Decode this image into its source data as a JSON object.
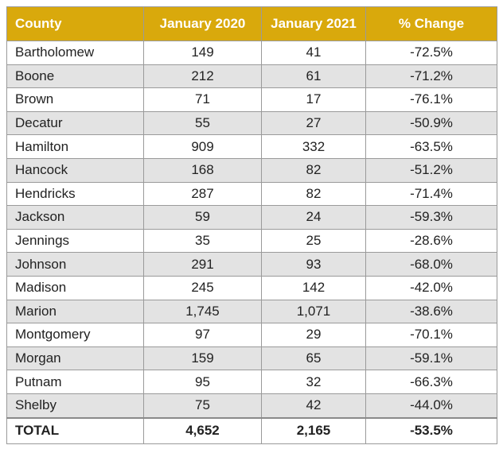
{
  "table": {
    "headers": [
      "County",
      "January 2020",
      "January 2021",
      "% Change"
    ],
    "rows": [
      [
        "Bartholomew",
        "149",
        "41",
        "-72.5%"
      ],
      [
        "Boone",
        "212",
        "61",
        "-71.2%"
      ],
      [
        "Brown",
        "71",
        "17",
        "-76.1%"
      ],
      [
        "Decatur",
        "55",
        "27",
        "-50.9%"
      ],
      [
        "Hamilton",
        "909",
        "332",
        "-63.5%"
      ],
      [
        "Hancock",
        "168",
        "82",
        "-51.2%"
      ],
      [
        "Hendricks",
        "287",
        "82",
        "-71.4%"
      ],
      [
        "Jackson",
        "59",
        "24",
        "-59.3%"
      ],
      [
        "Jennings",
        "35",
        "25",
        "-28.6%"
      ],
      [
        "Johnson",
        "291",
        "93",
        "-68.0%"
      ],
      [
        "Madison",
        "245",
        "142",
        "-42.0%"
      ],
      [
        "Marion",
        "1,745",
        "1,071",
        "-38.6%"
      ],
      [
        "Montgomery",
        "97",
        "29",
        "-70.1%"
      ],
      [
        "Morgan",
        "159",
        "65",
        "-59.1%"
      ],
      [
        "Putnam",
        "95",
        "32",
        "-66.3%"
      ],
      [
        "Shelby",
        "75",
        "42",
        "-44.0%"
      ]
    ],
    "total": [
      "TOTAL",
      "4,652",
      "2,165",
      "-53.5%"
    ]
  },
  "colors": {
    "header_bg": "#d9a90c",
    "header_text": "#ffffff",
    "stripe_bg": "#e3e3e3",
    "border": "#9a9a9a"
  }
}
